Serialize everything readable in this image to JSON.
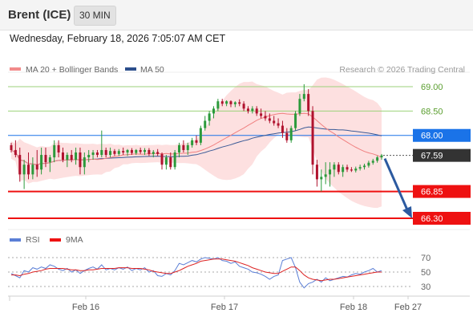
{
  "header": {
    "instrument": "Brent (ICE)",
    "timeframe": "30 MIN",
    "datetime": "Wednesday, February 18, 2026 7:05:07 AM CET"
  },
  "chart_data": {
    "type": "candlestick",
    "credit": "Research © 2026 Trading Central",
    "legend": [
      {
        "name": "MA 20 + Bollinger Bands",
        "color": "#f28b8b"
      },
      {
        "name": "MA 50",
        "color": "#2c4f8c"
      }
    ],
    "x_ticks": [
      "Feb 16",
      "Feb 17",
      "Feb 18",
      "Feb 27"
    ],
    "last_price": 67.59,
    "levels": [
      {
        "label": "69.00",
        "value": 69.0,
        "color": "#9bd27a",
        "text_color": "#5a9e2f"
      },
      {
        "label": "68.50",
        "value": 68.5,
        "color": "#9bd27a",
        "text_color": "#5a9e2f"
      },
      {
        "label": "68.00",
        "value": 68.0,
        "color": "#1a73e8",
        "text_color": "#ffffff"
      },
      {
        "label": "67.59",
        "value": 67.59,
        "color": "#333333",
        "text_color": "#ffffff"
      },
      {
        "label": "66.85",
        "value": 66.85,
        "color": "#ee1111",
        "text_color": "#ffffff"
      },
      {
        "label": "66.30",
        "value": 66.3,
        "color": "#ee1111",
        "text_color": "#ffffff"
      }
    ],
    "candles": [
      [
        67.8,
        67.85,
        67.65,
        67.7
      ],
      [
        67.7,
        67.9,
        67.55,
        67.6
      ],
      [
        67.6,
        67.75,
        67.05,
        67.2
      ],
      [
        67.2,
        67.5,
        66.9,
        67.4
      ],
      [
        67.4,
        67.65,
        67.1,
        67.2
      ],
      [
        67.2,
        67.55,
        67.1,
        67.4
      ],
      [
        67.4,
        67.7,
        67.15,
        67.3
      ],
      [
        67.3,
        67.75,
        67.2,
        67.6
      ],
      [
        67.6,
        67.75,
        67.35,
        67.45
      ],
      [
        67.45,
        67.6,
        67.25,
        67.55
      ],
      [
        67.55,
        67.9,
        67.45,
        67.8
      ],
      [
        67.8,
        67.9,
        67.55,
        67.65
      ],
      [
        67.65,
        67.75,
        67.45,
        67.5
      ],
      [
        67.5,
        67.65,
        67.35,
        67.6
      ],
      [
        67.6,
        67.7,
        67.45,
        67.5
      ],
      [
        67.5,
        67.75,
        67.4,
        67.65
      ],
      [
        67.65,
        67.75,
        67.2,
        67.35
      ],
      [
        67.35,
        67.65,
        67.2,
        67.55
      ],
      [
        67.55,
        67.7,
        67.45,
        67.6
      ],
      [
        67.6,
        67.7,
        67.5,
        67.65
      ],
      [
        67.65,
        67.7,
        67.55,
        67.6
      ],
      [
        67.6,
        68.1,
        67.55,
        67.7
      ],
      [
        67.7,
        67.75,
        67.55,
        67.6
      ],
      [
        67.6,
        67.75,
        67.55,
        67.68
      ],
      [
        67.68,
        67.72,
        67.58,
        67.62
      ],
      [
        67.62,
        67.72,
        67.58,
        67.68
      ],
      [
        67.68,
        67.75,
        67.6,
        67.65
      ],
      [
        67.65,
        67.72,
        67.58,
        67.7
      ],
      [
        67.7,
        67.74,
        67.6,
        67.64
      ],
      [
        67.64,
        67.72,
        67.6,
        67.7
      ],
      [
        67.7,
        67.75,
        67.62,
        67.66
      ],
      [
        67.66,
        67.74,
        67.6,
        67.7
      ],
      [
        67.7,
        67.74,
        67.58,
        67.62
      ],
      [
        67.62,
        67.7,
        67.55,
        67.66
      ],
      [
        67.66,
        67.72,
        67.58,
        67.62
      ],
      [
        67.62,
        67.65,
        67.3,
        67.4
      ],
      [
        67.4,
        67.6,
        67.3,
        67.55
      ],
      [
        67.55,
        67.65,
        67.3,
        67.35
      ],
      [
        67.35,
        67.7,
        67.3,
        67.65
      ],
      [
        67.65,
        67.85,
        67.55,
        67.8
      ],
      [
        67.8,
        67.9,
        67.65,
        67.7
      ],
      [
        67.7,
        67.85,
        67.6,
        67.8
      ],
      [
        67.8,
        67.95,
        67.75,
        67.9
      ],
      [
        67.9,
        68.0,
        67.8,
        67.85
      ],
      [
        67.85,
        68.2,
        67.8,
        68.15
      ],
      [
        68.15,
        68.4,
        68.1,
        68.3
      ],
      [
        68.3,
        68.5,
        68.2,
        68.45
      ],
      [
        68.45,
        68.6,
        68.35,
        68.55
      ],
      [
        68.55,
        68.75,
        68.5,
        68.7
      ],
      [
        68.7,
        68.75,
        68.6,
        68.65
      ],
      [
        68.65,
        68.72,
        68.6,
        68.7
      ],
      [
        68.7,
        68.72,
        68.58,
        68.64
      ],
      [
        68.64,
        68.7,
        68.58,
        68.68
      ],
      [
        68.68,
        68.74,
        68.6,
        68.65
      ],
      [
        68.65,
        68.7,
        68.5,
        68.55
      ],
      [
        68.55,
        68.6,
        68.45,
        68.5
      ],
      [
        68.5,
        68.6,
        68.45,
        68.55
      ],
      [
        68.55,
        68.6,
        68.4,
        68.45
      ],
      [
        68.45,
        68.55,
        68.35,
        68.4
      ],
      [
        68.4,
        68.5,
        68.3,
        68.35
      ],
      [
        68.35,
        68.45,
        68.25,
        68.3
      ],
      [
        68.3,
        68.4,
        68.2,
        68.25
      ],
      [
        68.25,
        68.35,
        68.15,
        68.2
      ],
      [
        68.2,
        68.3,
        67.95,
        68.05
      ],
      [
        68.05,
        68.15,
        67.85,
        67.9
      ],
      [
        67.9,
        68.2,
        67.85,
        68.15
      ],
      [
        68.15,
        68.5,
        68.1,
        68.45
      ],
      [
        68.45,
        68.85,
        68.4,
        68.75
      ],
      [
        68.75,
        69.05,
        68.7,
        68.85
      ],
      [
        68.85,
        68.95,
        68.4,
        68.5
      ],
      [
        68.5,
        68.6,
        67.2,
        67.4
      ],
      [
        67.4,
        67.5,
        66.95,
        67.1
      ],
      [
        67.1,
        67.3,
        66.85,
        67.15
      ],
      [
        67.15,
        67.45,
        67.0,
        67.2
      ],
      [
        67.2,
        67.45,
        66.95,
        67.3
      ],
      [
        67.3,
        67.45,
        67.15,
        67.4
      ],
      [
        67.4,
        67.45,
        67.2,
        67.25
      ],
      [
        67.25,
        67.4,
        67.15,
        67.35
      ],
      [
        67.35,
        67.4,
        67.25,
        67.3
      ],
      [
        67.3,
        67.35,
        67.25,
        67.28
      ],
      [
        67.28,
        67.36,
        67.24,
        67.32
      ],
      [
        67.32,
        67.4,
        67.28,
        67.35
      ],
      [
        67.35,
        67.42,
        67.3,
        67.38
      ],
      [
        67.38,
        67.48,
        67.34,
        67.44
      ],
      [
        67.44,
        67.52,
        67.4,
        67.48
      ],
      [
        67.48,
        67.58,
        67.44,
        67.55
      ],
      [
        67.55,
        67.62,
        67.5,
        67.59
      ]
    ],
    "forecast": {
      "target": 66.3
    },
    "rsi_panel": {
      "legend": [
        {
          "name": "RSI",
          "color": "#5b7fd6"
        },
        {
          "name": "9MA",
          "color": "#ee1111"
        }
      ],
      "ticks": [
        "70",
        "50",
        "30"
      ],
      "rsi": [
        48,
        45,
        42,
        52,
        50,
        56,
        54,
        57,
        55,
        60,
        58,
        54,
        52,
        55,
        50,
        53,
        48,
        52,
        55,
        57,
        54,
        60,
        53,
        55,
        53,
        56,
        54,
        57,
        52,
        55,
        53,
        56,
        50,
        52,
        45,
        44,
        48,
        46,
        52,
        62,
        60,
        63,
        66,
        64,
        68,
        70,
        69,
        68,
        70,
        66,
        65,
        62,
        64,
        58,
        56,
        54,
        50,
        49,
        47,
        44,
        40,
        44,
        46,
        66,
        68,
        70,
        56,
        36,
        28,
        34,
        36,
        40,
        36,
        42,
        38,
        40,
        42,
        44,
        43,
        46,
        48,
        47,
        50,
        52,
        55,
        50,
        52
      ],
      "ma9": [
        46,
        46,
        45,
        47,
        48,
        50,
        51,
        52,
        54,
        55,
        55,
        55,
        55,
        54,
        53,
        53,
        52,
        52,
        53,
        53,
        54,
        55,
        55,
        55,
        55,
        56,
        56,
        56,
        55,
        55,
        55,
        54,
        53,
        51,
        50,
        49,
        48,
        48,
        50,
        52,
        55,
        58,
        60,
        62,
        65,
        66,
        67,
        68,
        68,
        68,
        67,
        66,
        65,
        63,
        61,
        59,
        56,
        54,
        52,
        50,
        49,
        48,
        48,
        51,
        54,
        57,
        57,
        52,
        46,
        42,
        40,
        39,
        38,
        39,
        40,
        40,
        41,
        42,
        43,
        44,
        45,
        46,
        47,
        48,
        49,
        50,
        50
      ]
    }
  }
}
